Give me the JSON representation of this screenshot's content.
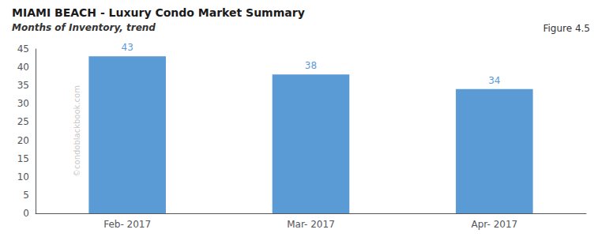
{
  "chart_data": {
    "type": "bar",
    "title": "MIAMI BEACH - Luxury Condo Market Summary",
    "subtitle": "Months of Inventory, trend",
    "annotations": [
      "Figure 4.5",
      "©condoblackbook.com"
    ],
    "categories": [
      "Feb- 2017",
      "Mar- 2017",
      "Apr- 2017"
    ],
    "values": [
      43,
      38,
      34
    ],
    "color": "#5B9BD5",
    "ylim": [
      0,
      45
    ],
    "yticks": [
      0,
      5,
      10,
      15,
      20,
      25,
      30,
      35,
      40,
      45
    ],
    "grid": false,
    "data_labels": true
  }
}
